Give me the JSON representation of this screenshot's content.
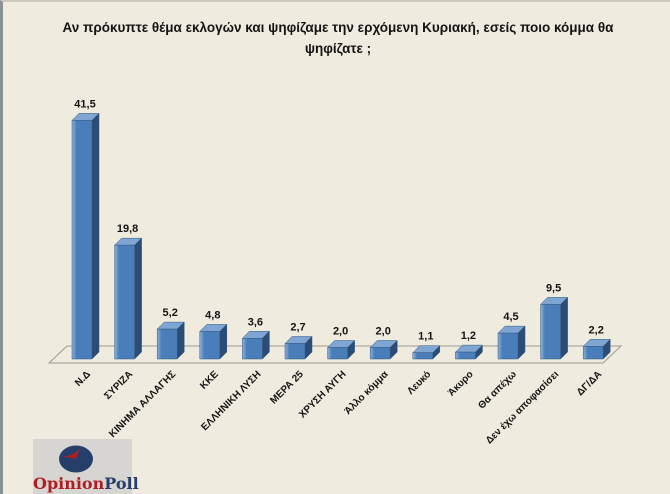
{
  "window": {
    "background_color": "#EFEBDE",
    "left_border_color": "#8A9197"
  },
  "chart_data": {
    "type": "bar",
    "style": "3d-column",
    "title": "Αν πρόκυπτε θέμα εκλογών και ψηφίζαμε  την ερχόμενη Κυριακή, εσείς ποιο κόμμα θα ψηφίζατε ;",
    "categories": [
      "Ν.Δ",
      "ΣΥΡΙΖΑ",
      "ΚΙΝΗΜΑ ΑΛΛΑΓΗΣ",
      "ΚΚΕ",
      "ΕΛΛΗΝΙΚΗ ΛΥΣΗ",
      "ΜΕΡΑ 25",
      "ΧΡΥΣΗ ΑΥΓΗ",
      "Άλλο κόμμα",
      "Λευκό",
      "Άκυρο",
      "Θα απέχω",
      "Δεν έχω αποφασίσει",
      "ΔΓ/ΔΑ"
    ],
    "values": [
      41.5,
      19.8,
      5.2,
      4.8,
      3.6,
      2.7,
      2.0,
      2.0,
      1.1,
      1.2,
      4.5,
      9.5,
      2.2
    ],
    "value_labels": [
      "41,5",
      "19,8",
      "5,2",
      "4,8",
      "3,6",
      "2,7",
      "2,0",
      "2,0",
      "1,1",
      "1,2",
      "4,5",
      "9,5",
      "2,2"
    ],
    "xlabel": "",
    "ylabel": "",
    "ylim": [
      0,
      45
    ],
    "grid": false,
    "legend": false,
    "bar_front_color": "#4A7EBB",
    "bar_highlight_color": "#8FB2DC",
    "bar_top_color": "#7FA5D2",
    "bar_side_color": "#2B4C74",
    "bar_outline_color": "#35597F",
    "floor_line_color": "#9B9B93"
  },
  "logo": {
    "text_primary": "Opinion",
    "text_secondary": "Poll",
    "primary_color": "#AF1E24",
    "secondary_color": "#263E6B",
    "pie_main_color": "#263F6A",
    "pie_slice_color": "#B01E23",
    "box_color": "#D7D5D1"
  }
}
